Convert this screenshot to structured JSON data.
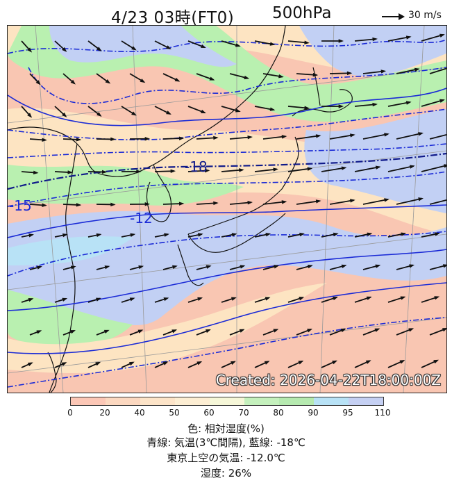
{
  "title": {
    "main": "4/23 03時(FT0)",
    "level": "500hPa"
  },
  "reference_vector": {
    "label": "30 m/s"
  },
  "map": {
    "created_stamp": "Created: 2026-04-22T18:00:00Z",
    "contour_labels": [
      "-18",
      "-15",
      "-12"
    ],
    "colors": {
      "sea": "#f9c6b2",
      "dry": "#fde4c2",
      "humid": "#b9f0b0",
      "wet": "#c2d0f4",
      "very_wet": "#b8e2f6",
      "isotherm": "#1a2ad6",
      "isotherm_emphasis": "#101a8a",
      "coast": "#111111"
    }
  },
  "colorbar": {
    "ticks": [
      "0",
      "20",
      "40",
      "50",
      "60",
      "70",
      "80",
      "90",
      "95",
      "110"
    ],
    "colors": [
      "#fcc7b6",
      "#fcd8c0",
      "#fde4c8",
      "#fdeed3",
      "#f6f7d8",
      "#c5f1bd",
      "#b6eab0",
      "#b8e2f6",
      "#c5d0f3"
    ]
  },
  "legend": {
    "line1": "色: 相対湿度(%)",
    "line2": "青線: 気温(3℃間隔), 藍線: -18℃",
    "line3": "東京上空の気温: -12.0℃",
    "line4": "湿度: 26%"
  }
}
